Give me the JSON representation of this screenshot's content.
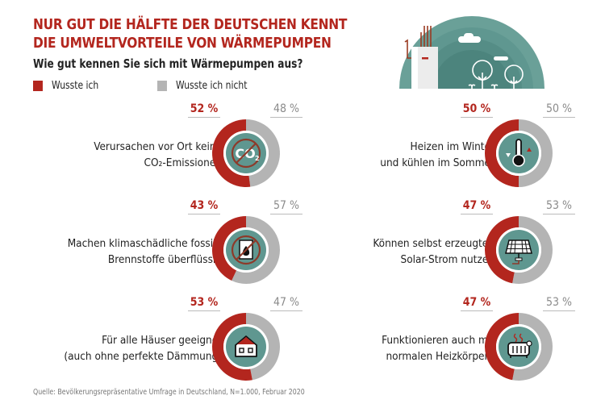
{
  "header": {
    "title_line1": "NUR GUT DIE HÄLFTE DER DEUTSCHEN KENNT",
    "title_line2": "DIE UMWELTVORTEILE VON WÄRMEPUMPEN",
    "subtitle": "Wie gut kennen Sie sich mit Wärmepumpen aus?"
  },
  "legend": [
    {
      "label": "Wusste ich",
      "color": "#b3261e"
    },
    {
      "label": "Wusste ich nicht",
      "color": "#b4b4b4"
    }
  ],
  "colors": {
    "yes": "#b3261e",
    "no": "#b4b4b4",
    "center": "#5f9790",
    "illustration": "#5f9790"
  },
  "chart_data": {
    "type": "pie",
    "subtype": "donut-grid",
    "title": "NUR GUT DIE HÄLFTE DER DEUTSCHEN KENNT DIE UMWELTVORTEILE VON WÄRMEPUMPEN",
    "subtitle": "Wie gut kennen Sie sich mit Wärmepumpen aus?",
    "legend": [
      "Wusste ich",
      "Wusste ich nicht"
    ],
    "legend_position": "top-left",
    "items": [
      {
        "label_line1": "Verursachen vor Ort keine",
        "label_line2": "CO₂-Emissionen",
        "icon": "no-co2-icon",
        "yes": 52,
        "no": 48,
        "yes_label": "52 %",
        "no_label": "48 %"
      },
      {
        "label_line1": "Heizen im Winter",
        "label_line2": "und kühlen im Sommer",
        "icon": "thermometer-icon",
        "yes": 50,
        "no": 50,
        "yes_label": "50 %",
        "no_label": "50 %"
      },
      {
        "label_line1": "Machen klimaschädliche fossile",
        "label_line2": "Brennstoffe überflüssig",
        "icon": "no-fossil-fuel-icon",
        "yes": 43,
        "no": 57,
        "yes_label": "43 %",
        "no_label": "57 %"
      },
      {
        "label_line1": "Können selbst erzeugten",
        "label_line2": "Solar-Strom nutzen",
        "icon": "solar-panel-icon",
        "yes": 47,
        "no": 53,
        "yes_label": "47 %",
        "no_label": "53 %"
      },
      {
        "label_line1": "Für alle Häuser geeignet",
        "label_line2": "(auch ohne perfekte Dämmung)",
        "icon": "house-icon",
        "yes": 53,
        "no": 47,
        "yes_label": "53 %",
        "no_label": "47 %"
      },
      {
        "label_line1": "Funktionieren auch mit",
        "label_line2": "normalen Heizkörpern",
        "icon": "radiator-icon",
        "yes": 47,
        "no": 53,
        "yes_label": "47 %",
        "no_label": "53 %"
      }
    ]
  },
  "footer": {
    "source": "Quelle: Bevölkerungsrepräsentative Umfrage in Deutschland, N=1.000, Februar 2020"
  }
}
